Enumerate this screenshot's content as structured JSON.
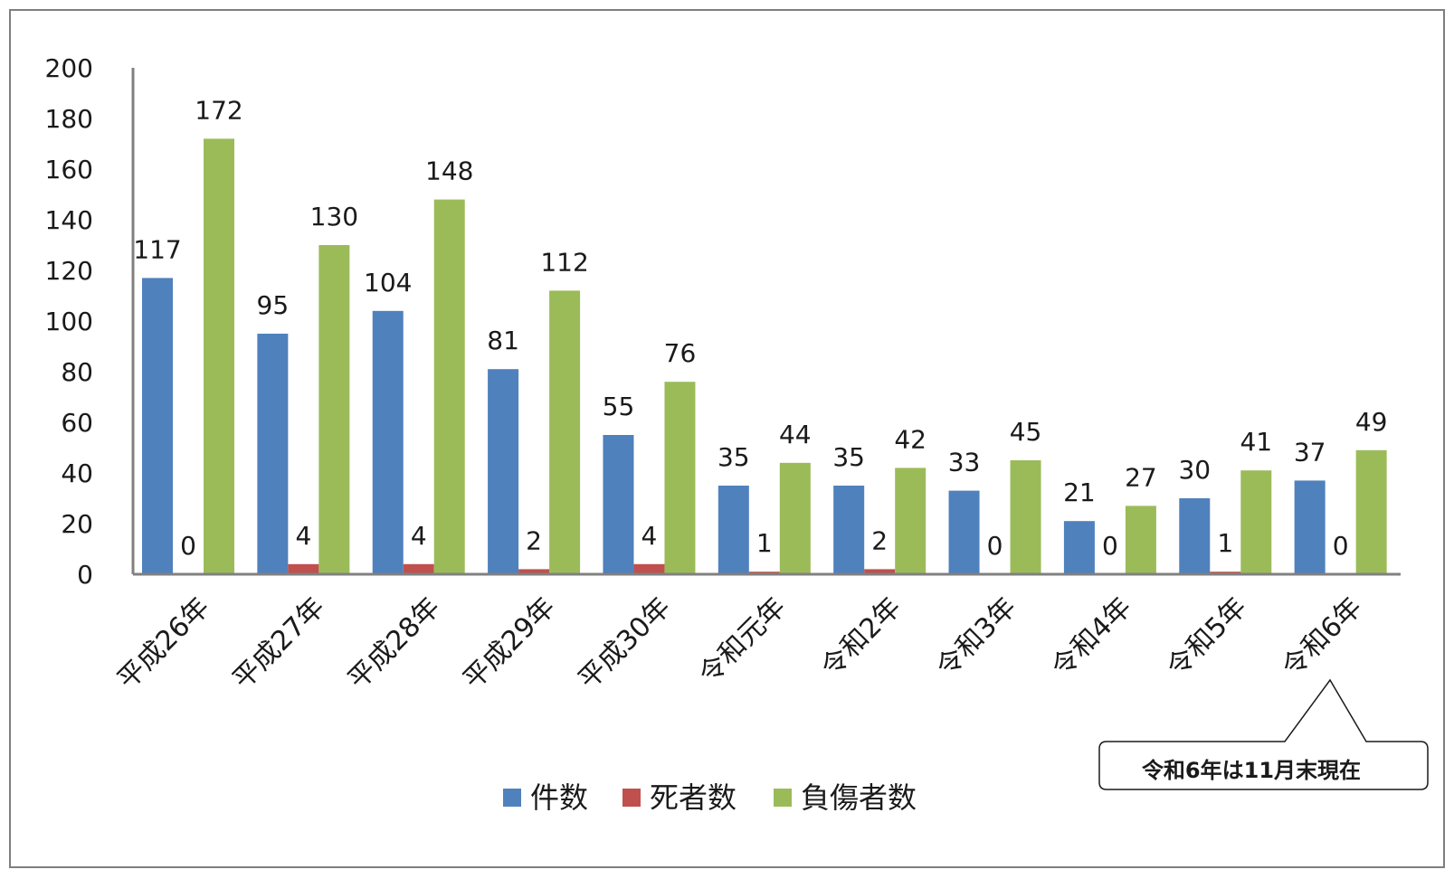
{
  "chart_data": {
    "type": "bar",
    "categories": [
      "平成26年",
      "平成27年",
      "平成28年",
      "平成29年",
      "平成30年",
      "令和元年",
      "令和2年",
      "令和3年",
      "令和4年",
      "令和5年",
      "令和6年"
    ],
    "series": [
      {
        "name": "件数",
        "color": "#4f81bd",
        "values": [
          117,
          95,
          104,
          81,
          55,
          35,
          35,
          33,
          21,
          30,
          37
        ]
      },
      {
        "name": "死者数",
        "color": "#c0504d",
        "values": [
          0,
          4,
          4,
          2,
          4,
          1,
          2,
          0,
          0,
          1,
          0
        ]
      },
      {
        "name": "負傷者数",
        "color": "#9bbb59",
        "values": [
          172,
          130,
          148,
          112,
          76,
          44,
          42,
          45,
          27,
          41,
          49
        ]
      }
    ],
    "ylim": [
      0,
      200
    ],
    "yticks": [
      0,
      20,
      40,
      60,
      80,
      100,
      120,
      140,
      160,
      180,
      200
    ],
    "grid": false,
    "legend_position": "bottom-center",
    "annotation": "令和6年は11月末現在"
  }
}
